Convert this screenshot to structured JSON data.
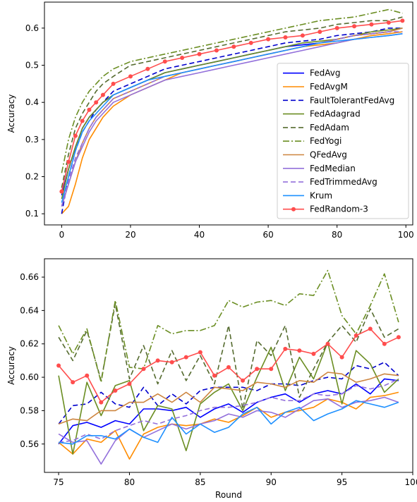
{
  "chart_data": [
    {
      "type": "line",
      "title": "",
      "xlabel": "",
      "ylabel": "Accuracy",
      "xlim": [
        -5,
        102
      ],
      "ylim": [
        0.07,
        0.67
      ],
      "xticks": [
        0,
        20,
        40,
        60,
        80,
        100
      ],
      "yticks": [
        0.1,
        0.2,
        0.3,
        0.4,
        0.5,
        0.6
      ],
      "ytick_labels": [
        "0.1",
        "0.2",
        "0.3",
        "0.4",
        "0.5",
        "0.6"
      ],
      "grid": false,
      "legend_position": "lower-right",
      "x": [
        0,
        2,
        4,
        6,
        8,
        10,
        12,
        15,
        20,
        25,
        30,
        35,
        40,
        45,
        50,
        55,
        60,
        65,
        70,
        75,
        80,
        85,
        90,
        95,
        99
      ],
      "series": [
        {
          "name": "FedAvg",
          "color": "#0000ff",
          "style": "solid",
          "values": [
            0.15,
            0.22,
            0.28,
            0.33,
            0.36,
            0.38,
            0.4,
            0.42,
            0.44,
            0.46,
            0.48,
            0.49,
            0.5,
            0.51,
            0.52,
            0.53,
            0.54,
            0.55,
            0.555,
            0.56,
            0.57,
            0.58,
            0.585,
            0.59,
            0.6
          ]
        },
        {
          "name": "FedAvgM",
          "color": "#ff8c00",
          "style": "solid",
          "values": [
            0.1,
            0.12,
            0.18,
            0.25,
            0.3,
            0.33,
            0.36,
            0.39,
            0.42,
            0.44,
            0.46,
            0.48,
            0.49,
            0.5,
            0.51,
            0.52,
            0.53,
            0.54,
            0.55,
            0.555,
            0.56,
            0.57,
            0.58,
            0.585,
            0.59
          ]
        },
        {
          "name": "FaultTolerantFedAvg",
          "color": "#0000cd",
          "style": "dashed",
          "values": [
            0.1,
            0.2,
            0.27,
            0.32,
            0.35,
            0.38,
            0.4,
            0.43,
            0.45,
            0.47,
            0.49,
            0.5,
            0.51,
            0.52,
            0.53,
            0.54,
            0.55,
            0.56,
            0.565,
            0.57,
            0.58,
            0.585,
            0.59,
            0.6,
            0.6
          ]
        },
        {
          "name": "FedAdagrad",
          "color": "#6b8e23",
          "style": "solid",
          "values": [
            0.14,
            0.22,
            0.28,
            0.33,
            0.36,
            0.38,
            0.4,
            0.42,
            0.44,
            0.46,
            0.48,
            0.49,
            0.5,
            0.51,
            0.52,
            0.53,
            0.54,
            0.55,
            0.56,
            0.565,
            0.57,
            0.58,
            0.59,
            0.595,
            0.6
          ]
        },
        {
          "name": "FedAdam",
          "color": "#556b2f",
          "style": "dashed",
          "values": [
            0.17,
            0.26,
            0.33,
            0.37,
            0.4,
            0.43,
            0.45,
            0.47,
            0.5,
            0.51,
            0.52,
            0.53,
            0.54,
            0.55,
            0.56,
            0.57,
            0.58,
            0.59,
            0.595,
            0.6,
            0.61,
            0.615,
            0.62,
            0.62,
            0.63
          ]
        },
        {
          "name": "FedYogi",
          "color": "#6b8e23",
          "style": "dashdot",
          "values": [
            0.21,
            0.3,
            0.36,
            0.4,
            0.43,
            0.45,
            0.47,
            0.49,
            0.51,
            0.52,
            0.53,
            0.54,
            0.55,
            0.56,
            0.57,
            0.58,
            0.59,
            0.6,
            0.61,
            0.62,
            0.625,
            0.63,
            0.64,
            0.65,
            0.64
          ]
        },
        {
          "name": "QFedAvg",
          "color": "#cd853f",
          "style": "solid",
          "values": [
            0.12,
            0.18,
            0.24,
            0.29,
            0.33,
            0.36,
            0.38,
            0.41,
            0.43,
            0.45,
            0.47,
            0.48,
            0.49,
            0.5,
            0.51,
            0.52,
            0.53,
            0.54,
            0.55,
            0.56,
            0.57,
            0.58,
            0.585,
            0.59,
            0.6
          ]
        },
        {
          "name": "FedMedian",
          "color": "#9370db",
          "style": "solid",
          "values": [
            0.12,
            0.18,
            0.24,
            0.28,
            0.32,
            0.35,
            0.37,
            0.4,
            0.42,
            0.44,
            0.46,
            0.47,
            0.48,
            0.49,
            0.5,
            0.51,
            0.52,
            0.53,
            0.54,
            0.55,
            0.56,
            0.57,
            0.575,
            0.58,
            0.585
          ]
        },
        {
          "name": "FedTrimmedAvg",
          "color": "#9370db",
          "style": "dashed",
          "values": [
            0.12,
            0.19,
            0.25,
            0.29,
            0.33,
            0.36,
            0.38,
            0.41,
            0.43,
            0.45,
            0.47,
            0.48,
            0.49,
            0.5,
            0.51,
            0.52,
            0.53,
            0.54,
            0.55,
            0.56,
            0.57,
            0.58,
            0.585,
            0.59,
            0.59
          ]
        },
        {
          "name": "Krum",
          "color": "#1e90ff",
          "style": "solid",
          "values": [
            0.13,
            0.2,
            0.27,
            0.32,
            0.35,
            0.37,
            0.39,
            0.42,
            0.44,
            0.46,
            0.47,
            0.48,
            0.49,
            0.5,
            0.51,
            0.52,
            0.53,
            0.54,
            0.55,
            0.56,
            0.565,
            0.57,
            0.575,
            0.58,
            0.585
          ]
        },
        {
          "name": "FedRandom-3",
          "color": "#ff4d4d",
          "style": "solid",
          "marker": "dot",
          "values": [
            0.16,
            0.24,
            0.31,
            0.35,
            0.38,
            0.4,
            0.42,
            0.45,
            0.47,
            0.49,
            0.51,
            0.52,
            0.53,
            0.54,
            0.55,
            0.56,
            0.57,
            0.575,
            0.58,
            0.59,
            0.6,
            0.605,
            0.61,
            0.615,
            0.62
          ]
        }
      ]
    },
    {
      "type": "line",
      "title": "",
      "xlabel": "Round",
      "ylabel": "Accuracy",
      "xlim": [
        74,
        100
      ],
      "ylim": [
        0.543,
        0.671
      ],
      "xticks": [
        75,
        80,
        85,
        90,
        95,
        100
      ],
      "yticks": [
        0.56,
        0.58,
        0.6,
        0.62,
        0.64,
        0.66
      ],
      "ytick_labels": [
        "0.56",
        "0.58",
        "0.60",
        "0.62",
        "0.64",
        "0.66"
      ],
      "grid": false,
      "x": [
        75,
        76,
        77,
        78,
        79,
        80,
        81,
        82,
        83,
        84,
        85,
        86,
        87,
        88,
        89,
        90,
        91,
        92,
        93,
        94,
        95,
        96,
        97,
        98,
        99
      ],
      "series": [
        {
          "name": "FedAvg",
          "color": "#0000ff",
          "style": "solid",
          "values": [
            0.56,
            0.571,
            0.573,
            0.57,
            0.574,
            0.572,
            0.581,
            0.581,
            0.58,
            0.582,
            0.576,
            0.581,
            0.584,
            0.579,
            0.585,
            0.588,
            0.59,
            0.585,
            0.59,
            0.592,
            0.59,
            0.596,
            0.59,
            0.599,
            0.598
          ]
        },
        {
          "name": "FedAvgM",
          "color": "#ff8c00",
          "style": "solid",
          "values": [
            0.561,
            0.554,
            0.563,
            0.561,
            0.568,
            0.551,
            0.566,
            0.57,
            0.572,
            0.571,
            0.572,
            0.575,
            0.573,
            0.577,
            0.582,
            0.576,
            0.579,
            0.58,
            0.582,
            0.587,
            0.585,
            0.581,
            0.588,
            0.589,
            0.591
          ]
        },
        {
          "name": "FaultTolerantFedAvg",
          "color": "#0000cd",
          "style": "dashed",
          "values": [
            0.572,
            0.583,
            0.584,
            0.591,
            0.584,
            0.582,
            0.594,
            0.583,
            0.59,
            0.584,
            0.592,
            0.594,
            0.594,
            0.594,
            0.592,
            0.596,
            0.596,
            0.595,
            0.598,
            0.6,
            0.599,
            0.607,
            0.605,
            0.609,
            0.601
          ]
        },
        {
          "name": "FedAdagrad",
          "color": "#6b8e23",
          "style": "solid",
          "values": [
            0.601,
            0.554,
            0.597,
            0.577,
            0.595,
            0.598,
            0.568,
            0.583,
            0.581,
            0.556,
            0.584,
            0.591,
            0.596,
            0.58,
            0.6,
            0.618,
            0.592,
            0.612,
            0.599,
            0.621,
            0.584,
            0.616,
            0.608,
            0.591,
            0.599
          ]
        },
        {
          "name": "FedAdam",
          "color": "#556b2f",
          "style": "dashed",
          "values": [
            0.624,
            0.61,
            0.628,
            0.598,
            0.644,
            0.599,
            0.619,
            0.596,
            0.616,
            0.598,
            0.613,
            0.596,
            0.631,
            0.581,
            0.622,
            0.613,
            0.631,
            0.588,
            0.605,
            0.621,
            0.631,
            0.621,
            0.641,
            0.624,
            0.629
          ]
        },
        {
          "name": "FedYogi",
          "color": "#6b8e23",
          "style": "dashdot",
          "values": [
            0.631,
            0.614,
            0.629,
            0.597,
            0.646,
            0.606,
            0.605,
            0.631,
            0.626,
            0.628,
            0.628,
            0.631,
            0.646,
            0.642,
            0.645,
            0.646,
            0.643,
            0.65,
            0.649,
            0.664,
            0.637,
            0.626,
            0.643,
            0.662,
            0.633
          ]
        },
        {
          "name": "QFedAvg",
          "color": "#cd853f",
          "style": "solid",
          "values": [
            0.572,
            0.575,
            0.574,
            0.58,
            0.58,
            0.585,
            0.585,
            0.59,
            0.585,
            0.591,
            0.585,
            0.594,
            0.593,
            0.592,
            0.597,
            0.596,
            0.594,
            0.598,
            0.597,
            0.603,
            0.602,
            0.597,
            0.599,
            0.602,
            0.601
          ]
        },
        {
          "name": "FedMedian",
          "color": "#9370db",
          "style": "solid",
          "values": [
            0.566,
            0.561,
            0.562,
            0.548,
            0.562,
            0.569,
            0.564,
            0.568,
            0.572,
            0.569,
            0.572,
            0.574,
            0.578,
            0.576,
            0.58,
            0.579,
            0.576,
            0.581,
            0.586,
            0.587,
            0.582,
            0.585,
            0.586,
            0.588,
            0.585
          ]
        },
        {
          "name": "FedTrimmedAvg",
          "color": "#9370db",
          "style": "dashed",
          "values": [
            0.561,
            0.562,
            0.566,
            0.563,
            0.568,
            0.571,
            0.574,
            0.572,
            0.575,
            0.577,
            0.58,
            0.582,
            0.582,
            0.583,
            0.585,
            0.588,
            0.586,
            0.586,
            0.59,
            0.589,
            0.59,
            0.595,
            0.593,
            0.595,
            0.599
          ]
        },
        {
          "name": "Krum",
          "color": "#1e90ff",
          "style": "solid",
          "values": [
            0.561,
            0.56,
            0.565,
            0.565,
            0.563,
            0.569,
            0.564,
            0.561,
            0.576,
            0.566,
            0.572,
            0.567,
            0.57,
            0.578,
            0.582,
            0.572,
            0.579,
            0.582,
            0.574,
            0.578,
            0.581,
            0.586,
            0.584,
            0.582,
            0.585
          ]
        },
        {
          "name": "FedRandom-3",
          "color": "#ff4d4d",
          "style": "solid",
          "marker": "dot",
          "values": [
            0.607,
            0.597,
            0.601,
            0.585,
            0.592,
            0.596,
            0.605,
            0.61,
            0.609,
            0.612,
            0.615,
            0.601,
            0.606,
            0.598,
            0.605,
            0.605,
            0.617,
            0.616,
            0.614,
            0.62,
            0.612,
            0.625,
            0.629,
            0.62,
            0.624
          ]
        }
      ]
    }
  ]
}
